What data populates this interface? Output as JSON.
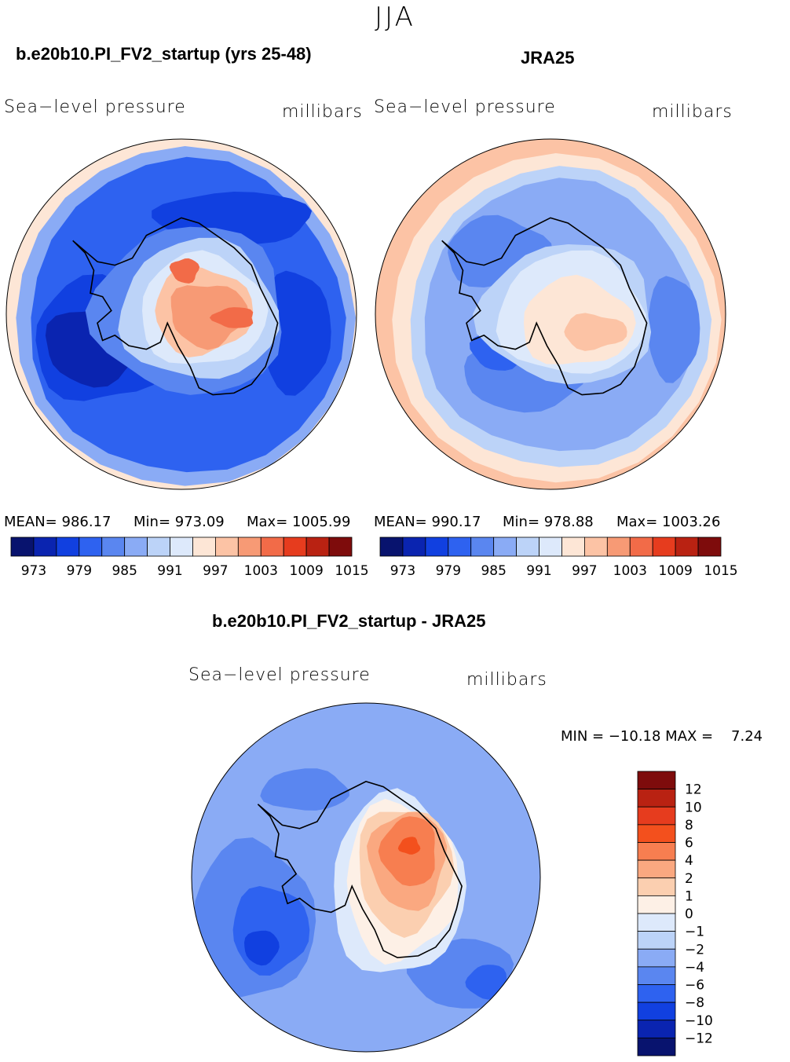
{
  "season": "JJA",
  "panels": [
    {
      "title": "b.e20b10.PI_FV2_startup (yrs 25-48)",
      "left_label": "Sea−level pressure",
      "right_label": "millibars",
      "mean": "MEAN= 986.17",
      "min": "Min= 973.09",
      "max": "Max= 1005.99"
    },
    {
      "title": "JRA25",
      "left_label": "Sea−level pressure",
      "right_label": "millibars",
      "mean": "MEAN= 990.17",
      "min": "Min= 978.88",
      "max": "Max= 1003.26"
    }
  ],
  "diff": {
    "title": "b.e20b10.PI_FV2_startup - JRA25",
    "left_label": "Sea−level pressure",
    "right_label": "millibars",
    "minmax": "MIN = −10.18 MAX =    7.24"
  },
  "chart_data": [
    {
      "type": "heatmap",
      "title": "b.e20b10.PI_FV2_startup (yrs 25-48)",
      "variable": "Sea-level pressure",
      "units": "millibars",
      "projection": "south polar stereographic",
      "mean": 986.17,
      "min": 973.09,
      "max": 1005.99,
      "levels": [
        "973",
        "979",
        "985",
        "991",
        "997",
        "1003",
        "1009",
        "1015"
      ]
    },
    {
      "type": "heatmap",
      "title": "JRA25",
      "variable": "Sea-level pressure",
      "units": "millibars",
      "projection": "south polar stereographic",
      "mean": 990.17,
      "min": 978.88,
      "max": 1003.26,
      "levels": [
        "973",
        "979",
        "985",
        "991",
        "997",
        "1003",
        "1009",
        "1015"
      ]
    },
    {
      "type": "heatmap",
      "title": "b.e20b10.PI_FV2_startup - JRA25",
      "variable": "Sea-level pressure",
      "units": "millibars",
      "projection": "south polar stereographic",
      "min": -10.18,
      "max": 7.24,
      "levels": [
        "12",
        "10",
        "8",
        "6",
        "4",
        "2",
        "1",
        "0",
        "−1",
        "−2",
        "−4",
        "−6",
        "−8",
        "−10",
        "−12"
      ]
    }
  ],
  "colors": {
    "abs_scale": [
      "#08136e",
      "#0a24b0",
      "#1140e0",
      "#2e62f0",
      "#5a86f0",
      "#8aabf5",
      "#bcd3f8",
      "#dde9fb",
      "#fde6d6",
      "#fcc3a5",
      "#f79a75",
      "#f26b48",
      "#e63c1e",
      "#b92212",
      "#7e0c0c"
    ],
    "diff_scale": [
      "#7e0c0c",
      "#b92212",
      "#e63c1e",
      "#f3501d",
      "#f77e50",
      "#faa880",
      "#fbcfb0",
      "#fdf0e6",
      "#dde9fb",
      "#bcd3f8",
      "#8aabf5",
      "#5a86f0",
      "#2e62f0",
      "#1140e0",
      "#0a24b0",
      "#08136e"
    ]
  }
}
